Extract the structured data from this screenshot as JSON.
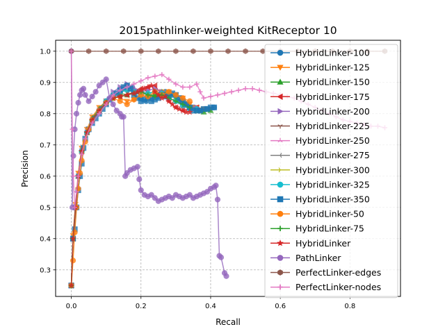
{
  "chart_data": {
    "type": "line",
    "title": "2015pathlinker-weighted KitReceptor 10",
    "xlabel": "Recall",
    "ylabel": "Precision",
    "xlim": [
      -0.045,
      0.945
    ],
    "ylim": [
      0.215,
      1.035
    ],
    "grid": true,
    "legend_position": "right",
    "xticks": [
      0.0,
      0.2,
      0.4,
      0.6,
      0.8
    ],
    "xtick_labels": [
      "0.0",
      "0.2",
      "0.4",
      "0.6",
      "0.8"
    ],
    "yticks": [
      0.3,
      0.4,
      0.5,
      0.6,
      0.7,
      0.8,
      0.9,
      1.0
    ],
    "ytick_labels": [
      "0.3",
      "0.4",
      "0.5",
      "0.6",
      "0.7",
      "0.8",
      "0.9",
      "1.0"
    ],
    "series": [
      {
        "name": "HybridLinker-100",
        "color": "#1f77b4",
        "marker": "circle",
        "x": [
          0.0,
          0.005,
          0.012,
          0.02,
          0.03,
          0.045,
          0.06,
          0.08,
          0.1,
          0.12,
          0.14,
          0.16,
          0.175,
          0.19,
          0.2,
          0.215,
          0.23,
          0.25,
          0.27,
          0.29,
          0.31,
          0.33,
          0.35,
          0.37,
          0.39,
          0.41
        ],
        "y": [
          0.25,
          0.4,
          0.5,
          0.6,
          0.68,
          0.74,
          0.78,
          0.81,
          0.84,
          0.86,
          0.87,
          0.88,
          0.885,
          0.87,
          0.85,
          0.84,
          0.85,
          0.855,
          0.87,
          0.86,
          0.84,
          0.83,
          0.82,
          0.81,
          0.815,
          0.82
        ]
      },
      {
        "name": "HybridLinker-125",
        "color": "#ff7f0e",
        "marker": "triangle-down",
        "x": [
          0.0,
          0.005,
          0.012,
          0.02,
          0.03,
          0.045,
          0.06,
          0.08,
          0.1,
          0.12,
          0.14,
          0.16,
          0.18,
          0.2,
          0.22,
          0.24,
          0.26,
          0.28,
          0.3,
          0.32,
          0.34,
          0.36,
          0.38,
          0.4
        ],
        "y": [
          0.25,
          0.41,
          0.51,
          0.61,
          0.69,
          0.75,
          0.79,
          0.82,
          0.84,
          0.855,
          0.85,
          0.84,
          0.845,
          0.86,
          0.85,
          0.86,
          0.87,
          0.87,
          0.86,
          0.85,
          0.83,
          0.82,
          0.815,
          0.815
        ]
      },
      {
        "name": "HybridLinker-150",
        "color": "#2ca02c",
        "marker": "triangle-up",
        "x": [
          0.0,
          0.005,
          0.012,
          0.02,
          0.03,
          0.045,
          0.06,
          0.08,
          0.1,
          0.12,
          0.14,
          0.16,
          0.18,
          0.2,
          0.22,
          0.24,
          0.26,
          0.28,
          0.3,
          0.32,
          0.34,
          0.36,
          0.38,
          0.4
        ],
        "y": [
          0.25,
          0.4,
          0.5,
          0.6,
          0.68,
          0.74,
          0.785,
          0.815,
          0.84,
          0.86,
          0.865,
          0.86,
          0.87,
          0.875,
          0.86,
          0.86,
          0.87,
          0.865,
          0.85,
          0.84,
          0.82,
          0.81,
          0.805,
          0.81
        ]
      },
      {
        "name": "HybridLinker-175",
        "color": "#d62728",
        "marker": "triangle-left",
        "x": [
          0.0,
          0.005,
          0.012,
          0.02,
          0.03,
          0.045,
          0.06,
          0.08,
          0.1,
          0.12,
          0.14,
          0.16,
          0.18,
          0.2,
          0.22,
          0.24,
          0.26,
          0.28,
          0.3,
          0.32,
          0.34,
          0.36
        ],
        "y": [
          0.25,
          0.4,
          0.5,
          0.6,
          0.68,
          0.74,
          0.78,
          0.81,
          0.835,
          0.85,
          0.855,
          0.86,
          0.87,
          0.88,
          0.885,
          0.89,
          0.86,
          0.84,
          0.82,
          0.81,
          0.815,
          0.82
        ]
      },
      {
        "name": "HybridLinker-200",
        "color": "#9467bd",
        "marker": "triangle-right",
        "x": [
          0.0,
          0.005,
          0.012,
          0.02,
          0.03,
          0.045,
          0.06,
          0.08,
          0.1,
          0.12,
          0.14,
          0.16,
          0.18,
          0.2,
          0.22,
          0.24,
          0.26,
          0.28,
          0.3,
          0.32,
          0.34,
          0.36
        ],
        "y": [
          0.25,
          0.4,
          0.5,
          0.6,
          0.68,
          0.74,
          0.78,
          0.81,
          0.84,
          0.87,
          0.885,
          0.895,
          0.88,
          0.87,
          0.875,
          0.88,
          0.87,
          0.85,
          0.84,
          0.83,
          0.82,
          0.82
        ]
      },
      {
        "name": "HybridLinker-225",
        "color": "#8c564b",
        "marker": "tri-down",
        "x": [
          0.0,
          0.005,
          0.012,
          0.02,
          0.03,
          0.045,
          0.06,
          0.08,
          0.1,
          0.12,
          0.14,
          0.16,
          0.18,
          0.2,
          0.22,
          0.24,
          0.26,
          0.28,
          0.3,
          0.32,
          0.34,
          0.36
        ],
        "y": [
          0.25,
          0.4,
          0.5,
          0.6,
          0.68,
          0.74,
          0.78,
          0.81,
          0.84,
          0.86,
          0.87,
          0.875,
          0.87,
          0.86,
          0.865,
          0.87,
          0.86,
          0.85,
          0.84,
          0.825,
          0.815,
          0.815
        ]
      },
      {
        "name": "HybridLinker-250",
        "color": "#e377c2",
        "marker": "tri-up",
        "x": [
          0.0,
          0.005,
          0.012,
          0.02,
          0.03,
          0.045,
          0.06,
          0.08,
          0.1,
          0.12,
          0.14,
          0.16,
          0.18,
          0.2,
          0.22,
          0.24,
          0.26,
          0.28,
          0.3,
          0.32,
          0.34,
          0.36
        ],
        "y": [
          0.25,
          0.4,
          0.5,
          0.6,
          0.68,
          0.74,
          0.78,
          0.81,
          0.84,
          0.86,
          0.87,
          0.875,
          0.87,
          0.865,
          0.865,
          0.87,
          0.865,
          0.85,
          0.84,
          0.825,
          0.815,
          0.815
        ]
      },
      {
        "name": "HybridLinker-275",
        "color": "#7f7f7f",
        "marker": "tri-left",
        "x": [
          0.0,
          0.005,
          0.012,
          0.02,
          0.03,
          0.045,
          0.06,
          0.08,
          0.1,
          0.12,
          0.14,
          0.16,
          0.18,
          0.2,
          0.22,
          0.24,
          0.26,
          0.28,
          0.3,
          0.32,
          0.34,
          0.36
        ],
        "y": [
          0.25,
          0.4,
          0.5,
          0.6,
          0.68,
          0.74,
          0.78,
          0.81,
          0.84,
          0.86,
          0.87,
          0.875,
          0.87,
          0.865,
          0.865,
          0.87,
          0.865,
          0.85,
          0.84,
          0.825,
          0.815,
          0.815
        ]
      },
      {
        "name": "HybridLinker-300",
        "color": "#bcbd22",
        "marker": "tri-right",
        "x": [
          0.0,
          0.005,
          0.012,
          0.02,
          0.03,
          0.045,
          0.06,
          0.08,
          0.1,
          0.12,
          0.14,
          0.16,
          0.18,
          0.2,
          0.22,
          0.24,
          0.26,
          0.28,
          0.3,
          0.32,
          0.34,
          0.36
        ],
        "y": [
          0.25,
          0.4,
          0.5,
          0.6,
          0.68,
          0.74,
          0.78,
          0.81,
          0.84,
          0.86,
          0.87,
          0.875,
          0.87,
          0.865,
          0.865,
          0.87,
          0.865,
          0.85,
          0.84,
          0.825,
          0.815,
          0.815
        ]
      },
      {
        "name": "HybridLinker-325",
        "color": "#17becf",
        "marker": "circle",
        "x": [
          0.0,
          0.005,
          0.012,
          0.02,
          0.03,
          0.045,
          0.06,
          0.08,
          0.1,
          0.12,
          0.14,
          0.16,
          0.18,
          0.2,
          0.22,
          0.24,
          0.26,
          0.28,
          0.3,
          0.32,
          0.34,
          0.36
        ],
        "y": [
          0.25,
          0.4,
          0.5,
          0.6,
          0.68,
          0.74,
          0.78,
          0.81,
          0.84,
          0.86,
          0.87,
          0.875,
          0.87,
          0.865,
          0.865,
          0.87,
          0.865,
          0.85,
          0.84,
          0.825,
          0.815,
          0.815
        ]
      },
      {
        "name": "HybridLinker-350",
        "color": "#1f77b4",
        "marker": "square",
        "x": [
          0.0,
          0.005,
          0.01,
          0.015,
          0.02,
          0.025,
          0.03,
          0.035,
          0.04,
          0.05,
          0.06,
          0.07,
          0.08,
          0.09,
          0.1,
          0.11,
          0.12,
          0.13,
          0.14,
          0.15,
          0.16,
          0.17,
          0.18,
          0.19,
          0.2,
          0.21,
          0.22,
          0.23,
          0.24,
          0.25,
          0.26,
          0.27,
          0.28,
          0.29,
          0.3,
          0.31,
          0.32,
          0.33,
          0.34,
          0.35,
          0.36,
          0.37,
          0.38,
          0.39,
          0.4,
          0.41
        ],
        "y": [
          0.25,
          0.4,
          0.43,
          0.5,
          0.555,
          0.6,
          0.64,
          0.69,
          0.72,
          0.75,
          0.77,
          0.785,
          0.8,
          0.815,
          0.83,
          0.845,
          0.855,
          0.865,
          0.875,
          0.885,
          0.89,
          0.88,
          0.86,
          0.85,
          0.84,
          0.845,
          0.85,
          0.84,
          0.845,
          0.85,
          0.86,
          0.855,
          0.86,
          0.865,
          0.86,
          0.85,
          0.84,
          0.83,
          0.82,
          0.81,
          0.81,
          0.81,
          0.815,
          0.815,
          0.82,
          0.82
        ]
      },
      {
        "name": "HybridLinker-50",
        "color": "#ff7f0e",
        "marker": "circle",
        "x": [
          0.0,
          0.005,
          0.01,
          0.015,
          0.02,
          0.025,
          0.03,
          0.04,
          0.05,
          0.06,
          0.08,
          0.1,
          0.12,
          0.14,
          0.16,
          0.18,
          0.2,
          0.22,
          0.24,
          0.26,
          0.28,
          0.3,
          0.32,
          0.34
        ],
        "y": [
          0.25,
          0.33,
          0.42,
          0.5,
          0.56,
          0.61,
          0.65,
          0.71,
          0.75,
          0.78,
          0.81,
          0.835,
          0.85,
          0.84,
          0.83,
          0.845,
          0.86,
          0.855,
          0.87,
          0.86,
          0.87,
          0.86,
          0.85,
          0.84
        ]
      },
      {
        "name": "HybridLinker-75",
        "color": "#2ca02c",
        "marker": "plus",
        "x": [
          0.0,
          0.005,
          0.012,
          0.02,
          0.03,
          0.045,
          0.06,
          0.08,
          0.1,
          0.12,
          0.14,
          0.16,
          0.18,
          0.2,
          0.22,
          0.24,
          0.26,
          0.28,
          0.3,
          0.32,
          0.34
        ],
        "y": [
          0.25,
          0.4,
          0.5,
          0.6,
          0.68,
          0.74,
          0.78,
          0.81,
          0.835,
          0.85,
          0.855,
          0.86,
          0.865,
          0.87,
          0.86,
          0.855,
          0.86,
          0.85,
          0.84,
          0.83,
          0.82
        ]
      },
      {
        "name": "HybridLinker",
        "color": "#d62728",
        "marker": "star",
        "x": [
          0.0,
          0.005,
          0.012,
          0.02,
          0.03,
          0.045,
          0.06,
          0.08,
          0.1,
          0.12,
          0.14,
          0.16,
          0.18,
          0.19,
          0.2,
          0.21,
          0.22,
          0.23,
          0.24,
          0.25,
          0.26,
          0.27,
          0.28,
          0.29,
          0.3,
          0.31,
          0.32,
          0.33,
          0.34
        ],
        "y": [
          0.25,
          0.4,
          0.5,
          0.6,
          0.68,
          0.74,
          0.78,
          0.81,
          0.835,
          0.85,
          0.855,
          0.86,
          0.865,
          0.87,
          0.875,
          0.88,
          0.885,
          0.89,
          0.87,
          0.86,
          0.85,
          0.855,
          0.84,
          0.83,
          0.82,
          0.815,
          0.81,
          0.805,
          0.805
        ]
      },
      {
        "name": "PathLinker",
        "color": "#9467bd",
        "marker": "circle",
        "x": [
          0.0,
          0.003,
          0.006,
          0.01,
          0.015,
          0.02,
          0.025,
          0.03,
          0.035,
          0.04,
          0.05,
          0.06,
          0.07,
          0.08,
          0.09,
          0.1,
          0.11,
          0.12,
          0.13,
          0.14,
          0.145,
          0.15,
          0.155,
          0.16,
          0.17,
          0.18,
          0.19,
          0.195,
          0.2,
          0.21,
          0.22,
          0.23,
          0.24,
          0.25,
          0.26,
          0.27,
          0.28,
          0.29,
          0.3,
          0.31,
          0.32,
          0.33,
          0.34,
          0.35,
          0.36,
          0.37,
          0.38,
          0.39,
          0.4,
          0.41,
          0.415,
          0.42,
          0.425,
          0.43,
          0.44,
          0.445
        ],
        "y": [
          1.0,
          0.5,
          0.665,
          0.75,
          0.8,
          0.835,
          0.86,
          0.875,
          0.88,
          0.86,
          0.84,
          0.855,
          0.87,
          0.89,
          0.9,
          0.91,
          0.85,
          0.83,
          0.81,
          0.8,
          0.79,
          0.79,
          0.6,
          0.61,
          0.62,
          0.625,
          0.63,
          0.59,
          0.555,
          0.54,
          0.535,
          0.54,
          0.53,
          0.52,
          0.525,
          0.53,
          0.535,
          0.53,
          0.54,
          0.535,
          0.53,
          0.535,
          0.54,
          0.53,
          0.535,
          0.54,
          0.545,
          0.55,
          0.56,
          0.565,
          0.57,
          0.525,
          0.345,
          0.34,
          0.29,
          0.28
        ]
      },
      {
        "name": "PerfectLinker-edges",
        "color": "#8c564b",
        "marker": "hexagon",
        "x": [
          0.0,
          0.05,
          0.1,
          0.15,
          0.2,
          0.25,
          0.3,
          0.35,
          0.4,
          0.45,
          0.5,
          0.55,
          0.6,
          0.65,
          0.7,
          0.75,
          0.8,
          0.85,
          0.9
        ],
        "y": [
          1.0,
          1.0,
          1.0,
          1.0,
          1.0,
          1.0,
          1.0,
          1.0,
          1.0,
          1.0,
          1.0,
          1.0,
          1.0,
          1.0,
          1.0,
          1.0,
          1.0,
          1.0,
          1.0
        ]
      },
      {
        "name": "PerfectLinker-nodes",
        "color": "#e377c2",
        "marker": "plus",
        "x": [
          0.0,
          0.003,
          0.006,
          0.01,
          0.015,
          0.02,
          0.03,
          0.04,
          0.06,
          0.08,
          0.1,
          0.12,
          0.14,
          0.16,
          0.18,
          0.2,
          0.22,
          0.24,
          0.26,
          0.28,
          0.3,
          0.32,
          0.34,
          0.36,
          0.37,
          0.38,
          0.4,
          0.42,
          0.44,
          0.46,
          0.48,
          0.5,
          0.52,
          0.54,
          0.56,
          0.58,
          0.6,
          0.62,
          0.64,
          0.66,
          0.68,
          0.7,
          0.72,
          0.74,
          0.76,
          0.78,
          0.8,
          0.82,
          0.84,
          0.86,
          0.88,
          0.9
        ],
        "y": [
          1.0,
          0.75,
          0.6,
          0.5,
          0.55,
          0.6,
          0.67,
          0.72,
          0.77,
          0.8,
          0.83,
          0.86,
          0.875,
          0.885,
          0.895,
          0.905,
          0.915,
          0.92,
          0.925,
          0.91,
          0.895,
          0.885,
          0.885,
          0.895,
          0.87,
          0.85,
          0.855,
          0.86,
          0.865,
          0.87,
          0.875,
          0.88,
          0.88,
          0.875,
          0.87,
          0.865,
          0.86,
          0.855,
          0.85,
          0.84,
          0.83,
          0.82,
          0.81,
          0.8,
          0.79,
          0.78,
          0.775,
          0.77,
          0.765,
          0.76,
          0.76,
          0.755
        ]
      }
    ]
  }
}
